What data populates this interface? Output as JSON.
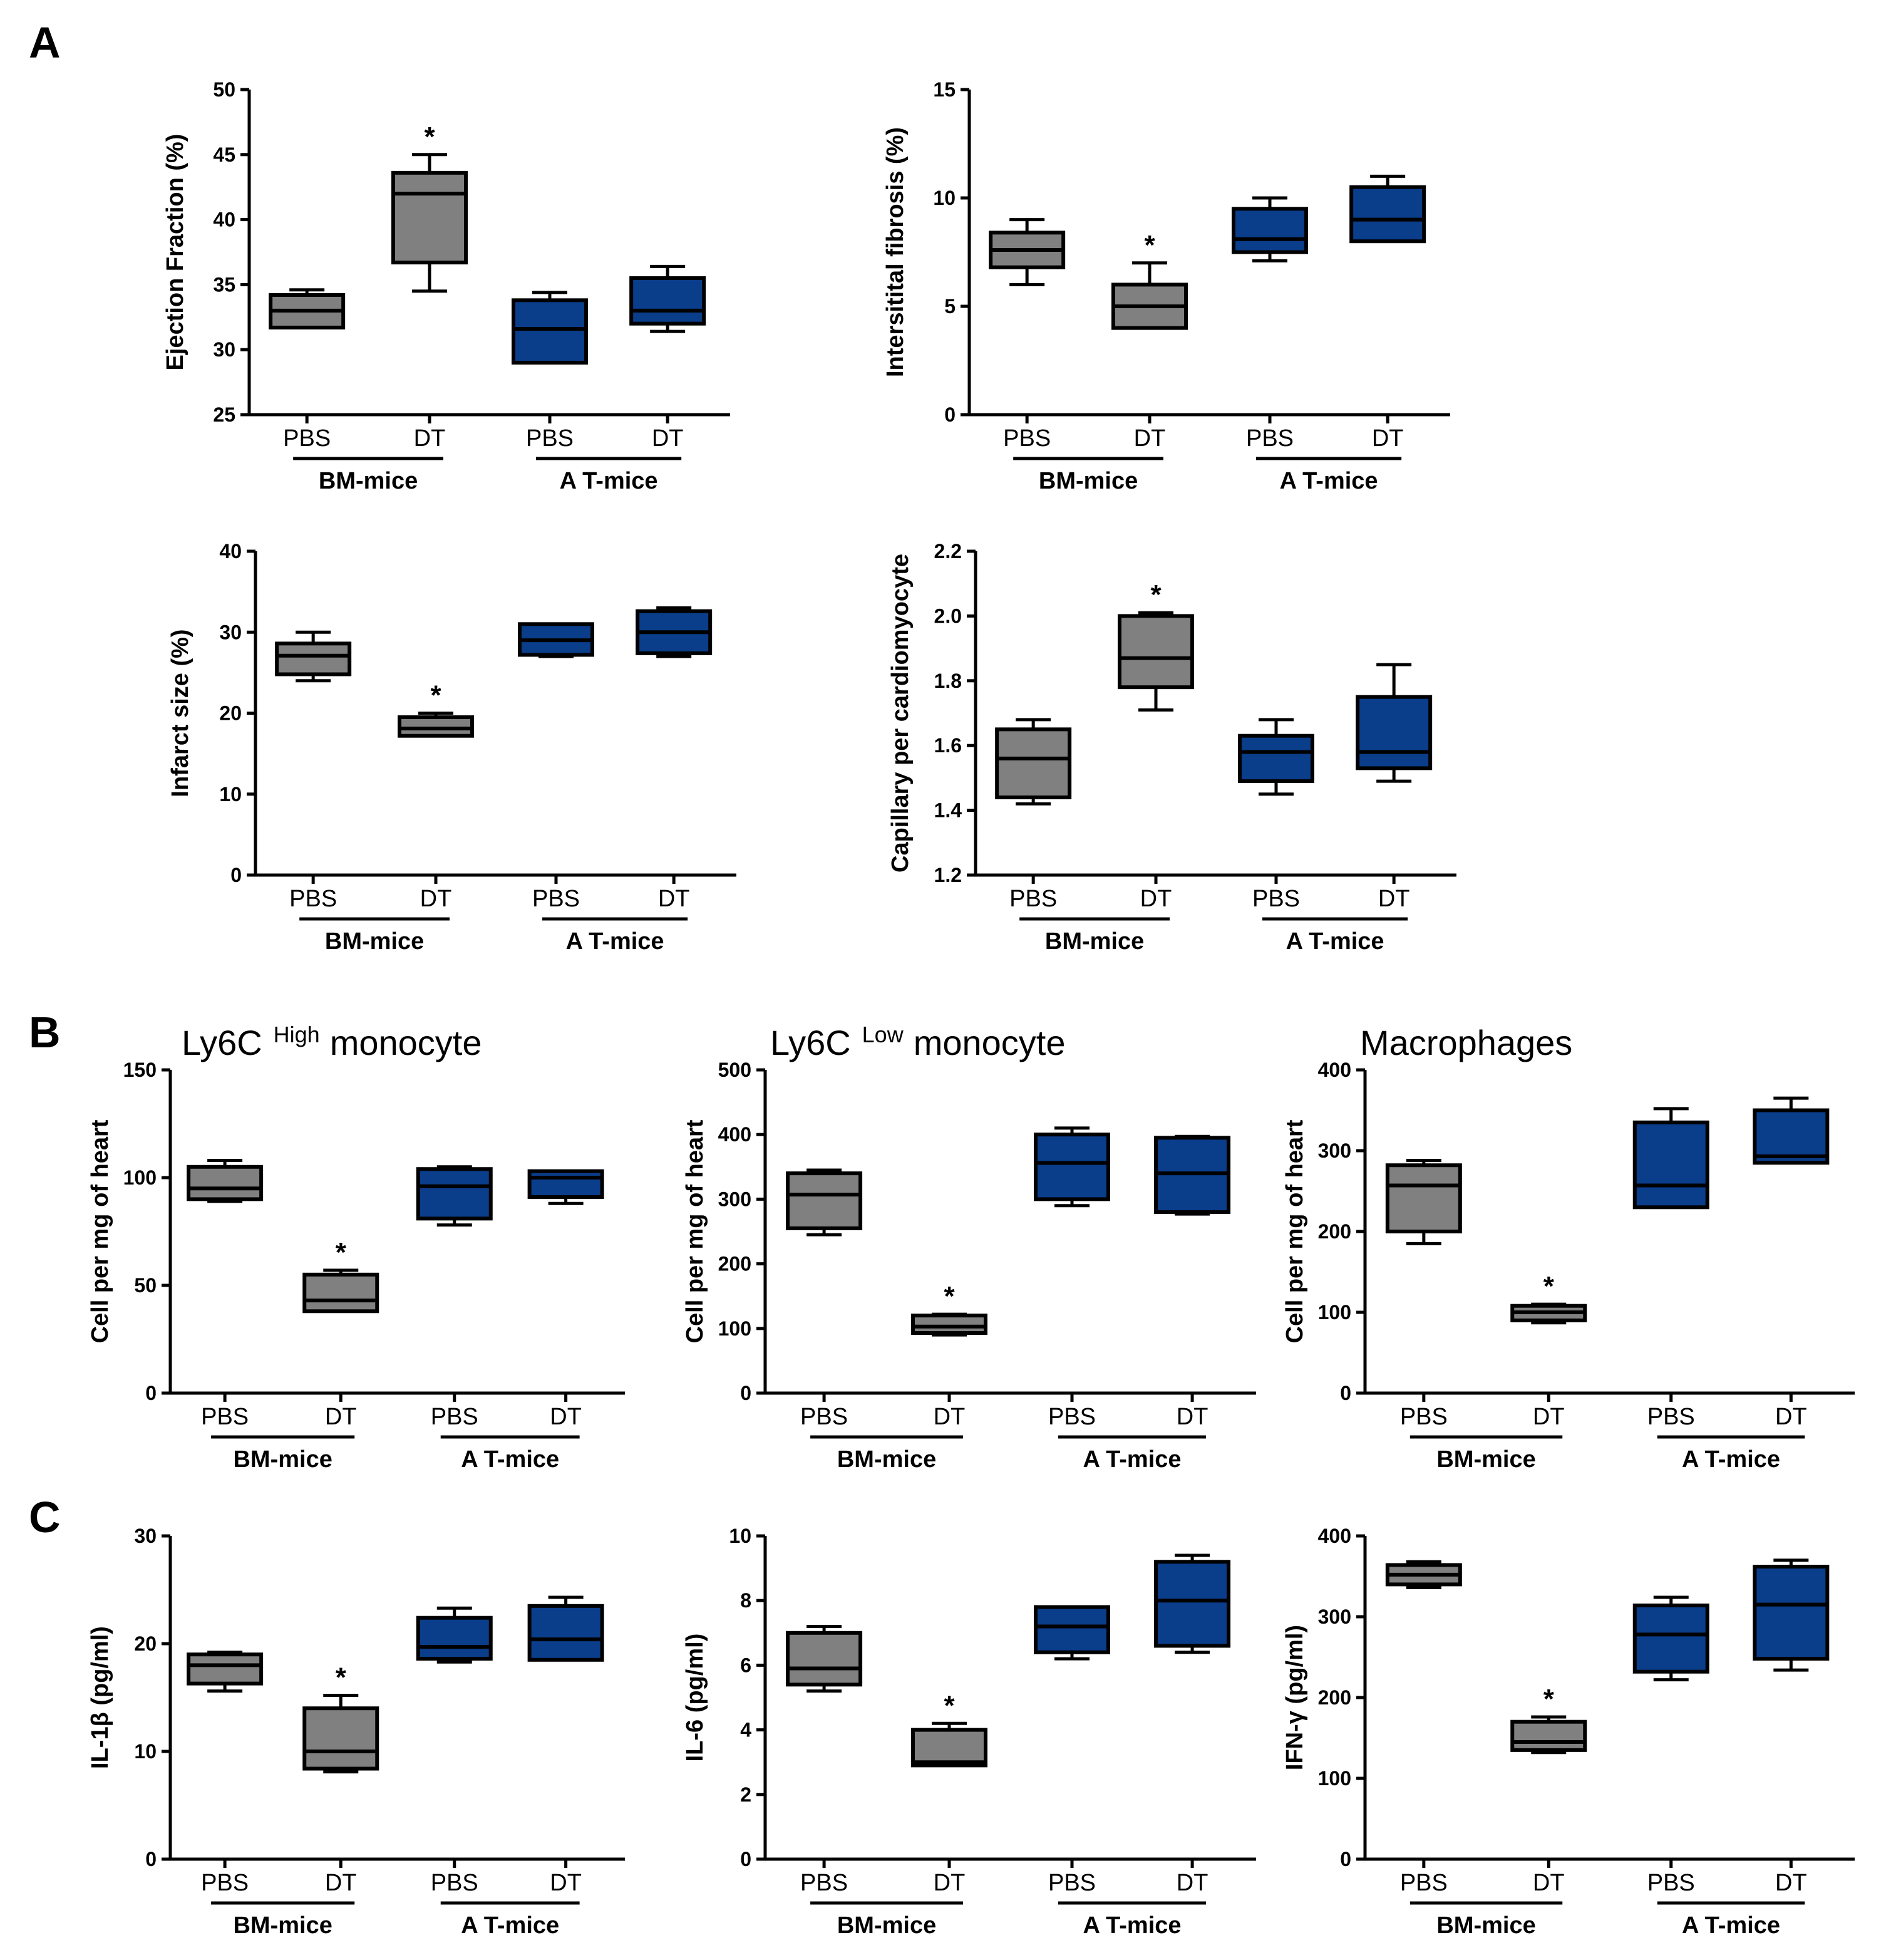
{
  "panel_labels": [
    "A",
    "B",
    "C"
  ],
  "colors": {
    "pbs_fill": "#808080",
    "at_fill": "#0a3d8a",
    "stroke": "#000000"
  },
  "chart_data": [
    {
      "type": "box",
      "panel": "A",
      "title": "",
      "ylabel": "Ejection Fraction (%)",
      "ylim": [
        25,
        50
      ],
      "yticks": [
        25,
        30,
        35,
        40,
        45,
        50
      ],
      "categories": [
        "PBS",
        "DT",
        "PBS",
        "DT"
      ],
      "groups": [
        {
          "label": "BM-mice",
          "members": [
            0,
            1
          ]
        },
        {
          "label": "A T-mice",
          "members": [
            2,
            3
          ]
        }
      ],
      "series": [
        {
          "name": "BM-mice PBS",
          "color": "#808080",
          "min": 31.7,
          "q1": 31.7,
          "median": 33.0,
          "q3": 34.2,
          "max": 34.6,
          "significant": false
        },
        {
          "name": "BM-mice DT",
          "color": "#808080",
          "min": 34.5,
          "q1": 36.7,
          "median": 42.0,
          "q3": 43.6,
          "max": 45.0,
          "significant": true
        },
        {
          "name": "A T-mice PBS",
          "color": "#0a3d8a",
          "min": 29.0,
          "q1": 29.0,
          "median": 31.6,
          "q3": 33.8,
          "max": 34.4,
          "significant": false
        },
        {
          "name": "A T-mice DT",
          "color": "#0a3d8a",
          "min": 31.4,
          "q1": 32.0,
          "median": 33.0,
          "q3": 35.5,
          "max": 36.4,
          "significant": false
        }
      ],
      "significance_label": "*"
    },
    {
      "type": "box",
      "panel": "A",
      "title": "",
      "ylabel": "Intersitital fibrosis (%)",
      "ylim": [
        0,
        15
      ],
      "yticks": [
        0,
        5,
        10,
        15
      ],
      "categories": [
        "PBS",
        "DT",
        "PBS",
        "DT"
      ],
      "groups": [
        {
          "label": "BM-mice",
          "members": [
            0,
            1
          ]
        },
        {
          "label": "A T-mice",
          "members": [
            2,
            3
          ]
        }
      ],
      "series": [
        {
          "name": "BM-mice PBS",
          "color": "#808080",
          "min": 6.0,
          "q1": 6.8,
          "median": 7.6,
          "q3": 8.4,
          "max": 9.0,
          "significant": false
        },
        {
          "name": "BM-mice DT",
          "color": "#808080",
          "min": 4.0,
          "q1": 4.0,
          "median": 5.0,
          "q3": 6.0,
          "max": 7.0,
          "significant": true
        },
        {
          "name": "A T-mice PBS",
          "color": "#0a3d8a",
          "min": 7.1,
          "q1": 7.5,
          "median": 8.1,
          "q3": 9.5,
          "max": 10.0,
          "significant": false
        },
        {
          "name": "A T-mice DT",
          "color": "#0a3d8a",
          "min": 8.0,
          "q1": 8.0,
          "median": 9.0,
          "q3": 10.5,
          "max": 11.0,
          "significant": false
        }
      ],
      "significance_label": "*"
    },
    {
      "type": "box",
      "panel": "A",
      "title": "",
      "ylabel": "Infarct size (%)",
      "ylim": [
        0,
        40
      ],
      "yticks": [
        0,
        10,
        20,
        30,
        40
      ],
      "categories": [
        "PBS",
        "DT",
        "PBS",
        "DT"
      ],
      "groups": [
        {
          "label": "BM-mice",
          "members": [
            0,
            1
          ]
        },
        {
          "label": "A T-mice",
          "members": [
            2,
            3
          ]
        }
      ],
      "series": [
        {
          "name": "BM-mice PBS",
          "color": "#808080",
          "min": 24.0,
          "q1": 24.8,
          "median": 27.1,
          "q3": 28.6,
          "max": 30.0,
          "significant": false
        },
        {
          "name": "BM-mice DT",
          "color": "#808080",
          "min": 17.2,
          "q1": 17.2,
          "median": 18.1,
          "q3": 19.5,
          "max": 20.0,
          "significant": true
        },
        {
          "name": "A T-mice PBS",
          "color": "#0a3d8a",
          "min": 27.0,
          "q1": 27.2,
          "median": 29.0,
          "q3": 31.0,
          "max": 31.0,
          "significant": false
        },
        {
          "name": "A T-mice DT",
          "color": "#0a3d8a",
          "min": 27.0,
          "q1": 27.4,
          "median": 30.0,
          "q3": 32.6,
          "max": 33.0,
          "significant": false
        }
      ],
      "significance_label": "*"
    },
    {
      "type": "box",
      "panel": "A",
      "title": "",
      "ylabel": "Capillary per cardiomyocyte",
      "ylim": [
        1.2,
        2.2
      ],
      "yticks": [
        1.2,
        1.4,
        1.6,
        1.8,
        2.0,
        2.2
      ],
      "tick_format": 1,
      "categories": [
        "PBS",
        "DT",
        "PBS",
        "DT"
      ],
      "groups": [
        {
          "label": "BM-mice",
          "members": [
            0,
            1
          ]
        },
        {
          "label": "A T-mice",
          "members": [
            2,
            3
          ]
        }
      ],
      "series": [
        {
          "name": "BM-mice PBS",
          "color": "#808080",
          "min": 1.42,
          "q1": 1.44,
          "median": 1.56,
          "q3": 1.65,
          "max": 1.68,
          "significant": false
        },
        {
          "name": "BM-mice DT",
          "color": "#808080",
          "min": 1.71,
          "q1": 1.78,
          "median": 1.87,
          "q3": 2.0,
          "max": 2.01,
          "significant": true
        },
        {
          "name": "A T-mice PBS",
          "color": "#0a3d8a",
          "min": 1.45,
          "q1": 1.49,
          "median": 1.58,
          "q3": 1.63,
          "max": 1.68,
          "significant": false
        },
        {
          "name": "A T-mice DT",
          "color": "#0a3d8a",
          "min": 1.49,
          "q1": 1.53,
          "median": 1.58,
          "q3": 1.75,
          "max": 1.85,
          "significant": false
        }
      ],
      "significance_label": "*"
    },
    {
      "type": "box",
      "panel": "B",
      "title": "Ly6C",
      "title_sup": "High",
      "title_suffix": "monocyte",
      "ylabel": "Cell per mg of heart",
      "ylim": [
        0,
        150
      ],
      "yticks": [
        0,
        50,
        100,
        150
      ],
      "categories": [
        "PBS",
        "DT",
        "PBS",
        "DT"
      ],
      "groups": [
        {
          "label": "BM-mice",
          "members": [
            0,
            1
          ]
        },
        {
          "label": "A T-mice",
          "members": [
            2,
            3
          ]
        }
      ],
      "series": [
        {
          "name": "BM-mice PBS",
          "color": "#808080",
          "min": 89,
          "q1": 90,
          "median": 95,
          "q3": 105,
          "max": 108,
          "significant": false
        },
        {
          "name": "BM-mice DT",
          "color": "#808080",
          "min": 38,
          "q1": 38,
          "median": 43,
          "q3": 55,
          "max": 57,
          "significant": true
        },
        {
          "name": "A T-mice PBS",
          "color": "#0a3d8a",
          "min": 78,
          "q1": 81,
          "median": 96,
          "q3": 104,
          "max": 105,
          "significant": false
        },
        {
          "name": "A T-mice DT",
          "color": "#0a3d8a",
          "min": 88,
          "q1": 91,
          "median": 100,
          "q3": 103,
          "max": 103,
          "significant": false
        }
      ],
      "significance_label": "*"
    },
    {
      "type": "box",
      "panel": "B",
      "title": "Ly6C",
      "title_sup": "Low",
      "title_suffix": "monocyte",
      "ylabel": "Cell per mg of heart",
      "ylim": [
        0,
        500
      ],
      "yticks": [
        0,
        100,
        200,
        300,
        400,
        500
      ],
      "categories": [
        "PBS",
        "DT",
        "PBS",
        "DT"
      ],
      "groups": [
        {
          "label": "BM-mice",
          "members": [
            0,
            1
          ]
        },
        {
          "label": "A T-mice",
          "members": [
            2,
            3
          ]
        }
      ],
      "series": [
        {
          "name": "BM-mice PBS",
          "color": "#808080",
          "min": 245,
          "q1": 255,
          "median": 307,
          "q3": 340,
          "max": 345,
          "significant": false
        },
        {
          "name": "BM-mice DT",
          "color": "#808080",
          "min": 90,
          "q1": 93,
          "median": 103,
          "q3": 120,
          "max": 122,
          "significant": true
        },
        {
          "name": "A T-mice PBS",
          "color": "#0a3d8a",
          "min": 290,
          "q1": 300,
          "median": 356,
          "q3": 400,
          "max": 410,
          "significant": false
        },
        {
          "name": "A T-mice DT",
          "color": "#0a3d8a",
          "min": 277,
          "q1": 280,
          "median": 340,
          "q3": 395,
          "max": 397,
          "significant": false
        }
      ],
      "significance_label": "*"
    },
    {
      "type": "box",
      "panel": "B",
      "title": "Macrophages",
      "ylabel": "Cell per mg of heart",
      "ylim": [
        0,
        400
      ],
      "yticks": [
        0,
        100,
        200,
        300,
        400
      ],
      "categories": [
        "PBS",
        "DT",
        "PBS",
        "DT"
      ],
      "groups": [
        {
          "label": "BM-mice",
          "members": [
            0,
            1
          ]
        },
        {
          "label": "A T-mice",
          "members": [
            2,
            3
          ]
        }
      ],
      "series": [
        {
          "name": "BM-mice PBS",
          "color": "#808080",
          "min": 185,
          "q1": 200,
          "median": 257,
          "q3": 282,
          "max": 288,
          "significant": false
        },
        {
          "name": "BM-mice DT",
          "color": "#808080",
          "min": 87,
          "q1": 90,
          "median": 100,
          "q3": 108,
          "max": 110,
          "significant": true
        },
        {
          "name": "A T-mice PBS",
          "color": "#0a3d8a",
          "min": 230,
          "q1": 230,
          "median": 257,
          "q3": 335,
          "max": 352,
          "significant": false
        },
        {
          "name": "A T-mice DT",
          "color": "#0a3d8a",
          "min": 285,
          "q1": 285,
          "median": 293,
          "q3": 350,
          "max": 365,
          "significant": false
        }
      ],
      "significance_label": "*"
    },
    {
      "type": "box",
      "panel": "C",
      "title": "",
      "ylabel": "IL-1β (pg/ml)",
      "ylim": [
        0,
        30
      ],
      "yticks": [
        0,
        10,
        20,
        30
      ],
      "categories": [
        "PBS",
        "DT",
        "PBS",
        "DT"
      ],
      "groups": [
        {
          "label": "BM-mice",
          "members": [
            0,
            1
          ]
        },
        {
          "label": "A T-mice",
          "members": [
            2,
            3
          ]
        }
      ],
      "series": [
        {
          "name": "BM-mice PBS",
          "color": "#808080",
          "min": 15.6,
          "q1": 16.3,
          "median": 18.0,
          "q3": 19.0,
          "max": 19.2,
          "significant": false
        },
        {
          "name": "BM-mice DT",
          "color": "#808080",
          "min": 8.1,
          "q1": 8.4,
          "median": 10.0,
          "q3": 14.0,
          "max": 15.2,
          "significant": true
        },
        {
          "name": "A T-mice PBS",
          "color": "#0a3d8a",
          "min": 18.3,
          "q1": 18.6,
          "median": 19.7,
          "q3": 22.4,
          "max": 23.3,
          "significant": false
        },
        {
          "name": "A T-mice DT",
          "color": "#0a3d8a",
          "min": 18.5,
          "q1": 18.5,
          "median": 20.4,
          "q3": 23.5,
          "max": 24.3,
          "significant": false
        }
      ],
      "significance_label": "*"
    },
    {
      "type": "box",
      "panel": "C",
      "title": "",
      "ylabel": "IL-6 (pg/ml)",
      "ylim": [
        0,
        10
      ],
      "yticks": [
        0,
        2,
        4,
        6,
        8,
        10
      ],
      "categories": [
        "PBS",
        "DT",
        "PBS",
        "DT"
      ],
      "groups": [
        {
          "label": "BM-mice",
          "members": [
            0,
            1
          ]
        },
        {
          "label": "A T-mice",
          "members": [
            2,
            3
          ]
        }
      ],
      "series": [
        {
          "name": "BM-mice PBS",
          "color": "#808080",
          "min": 5.2,
          "q1": 5.4,
          "median": 5.9,
          "q3": 7.0,
          "max": 7.2,
          "significant": false
        },
        {
          "name": "BM-mice DT",
          "color": "#808080",
          "min": 2.9,
          "q1": 2.9,
          "median": 3.0,
          "q3": 4.0,
          "max": 4.2,
          "significant": true
        },
        {
          "name": "A T-mice PBS",
          "color": "#0a3d8a",
          "min": 6.2,
          "q1": 6.4,
          "median": 7.2,
          "q3": 7.8,
          "max": 7.8,
          "significant": false
        },
        {
          "name": "A T-mice DT",
          "color": "#0a3d8a",
          "min": 6.4,
          "q1": 6.6,
          "median": 8.0,
          "q3": 9.2,
          "max": 9.4,
          "significant": false
        }
      ],
      "significance_label": "*"
    },
    {
      "type": "box",
      "panel": "C",
      "title": "",
      "ylabel": "IFN-γ (pg/ml)",
      "ylim": [
        0,
        400
      ],
      "yticks": [
        0,
        100,
        200,
        300,
        400
      ],
      "categories": [
        "PBS",
        "DT",
        "PBS",
        "DT"
      ],
      "groups": [
        {
          "label": "BM-mice",
          "members": [
            0,
            1
          ]
        },
        {
          "label": "A T-mice",
          "members": [
            2,
            3
          ]
        }
      ],
      "series": [
        {
          "name": "BM-mice PBS",
          "color": "#808080",
          "min": 336,
          "q1": 340,
          "median": 352,
          "q3": 364,
          "max": 368,
          "significant": false
        },
        {
          "name": "BM-mice DT",
          "color": "#808080",
          "min": 132,
          "q1": 135,
          "median": 145,
          "q3": 170,
          "max": 176,
          "significant": true
        },
        {
          "name": "A T-mice PBS",
          "color": "#0a3d8a",
          "min": 222,
          "q1": 232,
          "median": 278,
          "q3": 314,
          "max": 324,
          "significant": false
        },
        {
          "name": "A T-mice DT",
          "color": "#0a3d8a",
          "min": 234,
          "q1": 248,
          "median": 315,
          "q3": 362,
          "max": 370,
          "significant": false
        }
      ],
      "significance_label": "*"
    }
  ]
}
